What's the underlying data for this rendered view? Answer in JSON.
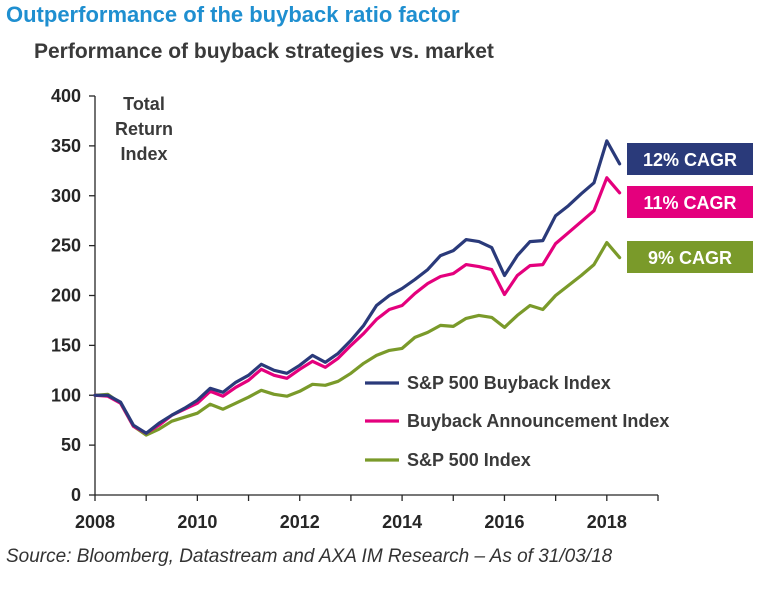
{
  "headline": "Outperformance of the buyback ratio factor",
  "source": "Source: Bloomberg, Datastream and AXA IM Research – As of 31/03/18",
  "chart_data": {
    "type": "line",
    "title": "Performance of buyback strategies vs. market",
    "ylabel": "Total\nReturn\nIndex",
    "xlabel": "",
    "xlim": [
      2008,
      2019
    ],
    "ylim": [
      0,
      400
    ],
    "x_ticks": [
      "2008",
      "2010",
      "2012",
      "2014",
      "2016",
      "2018"
    ],
    "y_ticks": [
      "0",
      "50",
      "100",
      "150",
      "200",
      "250",
      "300",
      "350",
      "400"
    ],
    "grid": false,
    "legend_position": "center-right",
    "x": [
      2008.0,
      2008.25,
      2008.5,
      2008.75,
      2009.0,
      2009.25,
      2009.5,
      2009.75,
      2010.0,
      2010.25,
      2010.5,
      2010.75,
      2011.0,
      2011.25,
      2011.5,
      2011.75,
      2012.0,
      2012.25,
      2012.5,
      2012.75,
      2013.0,
      2013.25,
      2013.5,
      2013.75,
      2014.0,
      2014.25,
      2014.5,
      2014.75,
      2015.0,
      2015.25,
      2015.5,
      2015.75,
      2016.0,
      2016.25,
      2016.5,
      2016.75,
      2017.0,
      2017.25,
      2017.5,
      2017.75,
      2018.0,
      2018.25
    ],
    "series": [
      {
        "name": "S&P 500 Buyback Index",
        "color": "#2a3a7a",
        "cagr": "12% CAGR",
        "values": [
          100,
          100,
          93,
          70,
          62,
          72,
          80,
          87,
          95,
          107,
          103,
          113,
          120,
          131,
          125,
          122,
          130,
          140,
          133,
          142,
          155,
          170,
          190,
          200,
          207,
          216,
          226,
          240,
          245,
          256,
          254,
          248,
          220,
          240,
          254,
          255,
          280,
          290,
          302,
          313,
          355,
          332
        ]
      },
      {
        "name": "Buyback Announcement Index",
        "color": "#e4007d",
        "cagr": "11% CAGR",
        "values": [
          100,
          99,
          92,
          69,
          62,
          70,
          80,
          86,
          92,
          104,
          99,
          108,
          115,
          126,
          120,
          117,
          126,
          134,
          128,
          137,
          150,
          162,
          176,
          186,
          190,
          202,
          212,
          219,
          222,
          231,
          229,
          226,
          201,
          220,
          230,
          231,
          252,
          263,
          274,
          285,
          318,
          303
        ]
      },
      {
        "name": "S&P 500 Index",
        "color": "#7a9a2a",
        "cagr": "9% CAGR",
        "values": [
          100,
          101,
          92,
          69,
          60,
          66,
          74,
          78,
          82,
          91,
          86,
          92,
          98,
          105,
          101,
          99,
          104,
          111,
          110,
          114,
          122,
          132,
          140,
          145,
          147,
          158,
          163,
          170,
          169,
          177,
          180,
          178,
          168,
          180,
          190,
          186,
          200,
          210,
          220,
          231,
          253,
          238
        ]
      }
    ]
  }
}
